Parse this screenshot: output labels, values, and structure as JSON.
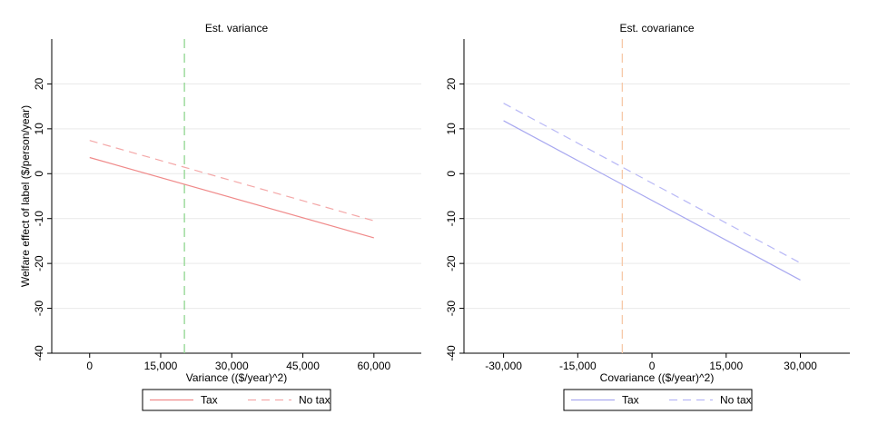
{
  "chart_data": [
    {
      "type": "line",
      "title": "Est. variance",
      "xlabel": "Variance (($/year)^2)",
      "ylabel": "Welfare effect of label ($/person/year)",
      "xlim": [
        -8000,
        70000
      ],
      "ylim": [
        -40,
        30
      ],
      "xticks": [
        0,
        15000,
        30000,
        45000,
        60000
      ],
      "xtick_labels": [
        "0",
        "15,000",
        "30,000",
        "45,000",
        "60,000"
      ],
      "yticks": [
        -40,
        -30,
        -20,
        -10,
        0,
        10,
        20
      ],
      "ytick_labels": [
        "-40",
        "-30",
        "-20",
        "-10",
        "0",
        "10",
        "20"
      ],
      "grid": "horizontal",
      "vline": {
        "x": 20000,
        "color": "#8fd68f"
      },
      "series": [
        {
          "name": "Tax",
          "color": "#f08a8a",
          "dash": "solid",
          "x": [
            0,
            60000
          ],
          "y": [
            3.6,
            -14.3
          ]
        },
        {
          "name": "No tax",
          "color": "#f4a8a8",
          "dash": "dashed",
          "x": [
            0,
            60000
          ],
          "y": [
            7.4,
            -10.5
          ]
        }
      ],
      "legend": [
        "Tax",
        "No tax"
      ],
      "legend_position": "bottom"
    },
    {
      "type": "line",
      "title": "Est. covariance",
      "xlabel": "Covariance (($/year)^2)",
      "ylabel": "",
      "xlim": [
        -38000,
        40000
      ],
      "ylim": [
        -40,
        30
      ],
      "xticks": [
        -30000,
        -15000,
        0,
        15000,
        30000
      ],
      "xtick_labels": [
        "-30,000",
        "-15,000",
        "0",
        "15,000",
        "30,000"
      ],
      "yticks": [
        -40,
        -30,
        -20,
        -10,
        0,
        10,
        20
      ],
      "ytick_labels": [
        "-40",
        "-30",
        "-20",
        "-10",
        "0",
        "10",
        "20"
      ],
      "grid": "horizontal",
      "vline": {
        "x": -6000,
        "color": "#f7c9a8"
      },
      "series": [
        {
          "name": "Tax",
          "color": "#a8a8f0",
          "dash": "solid",
          "x": [
            -30000,
            30000
          ],
          "y": [
            11.8,
            -23.7
          ]
        },
        {
          "name": "No tax",
          "color": "#b8b8f6",
          "dash": "dashed",
          "x": [
            -30000,
            30000
          ],
          "y": [
            15.7,
            -19.9
          ]
        }
      ],
      "legend": [
        "Tax",
        "No tax"
      ],
      "legend_position": "bottom"
    }
  ]
}
